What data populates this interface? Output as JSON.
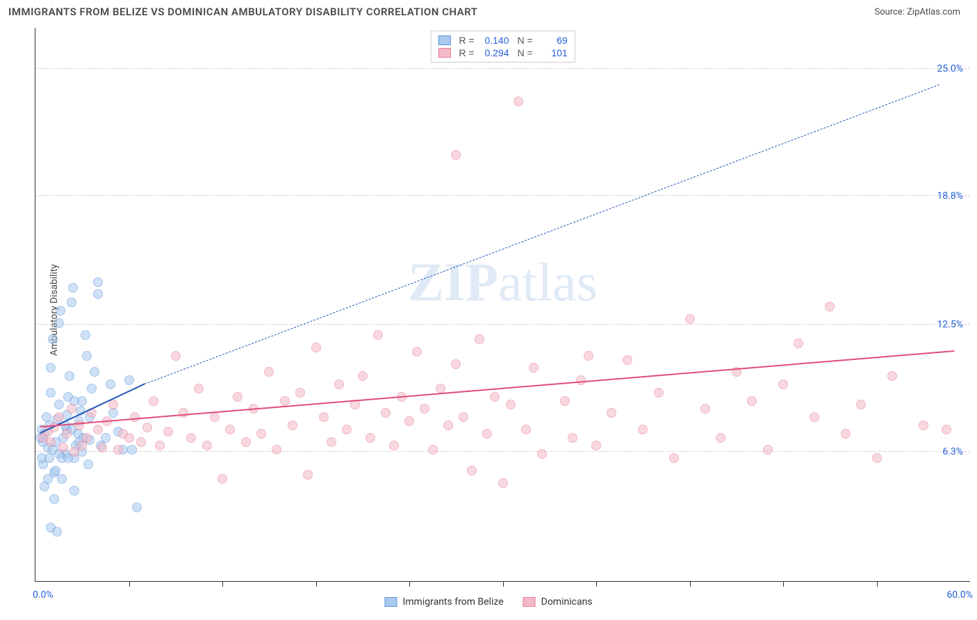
{
  "header": {
    "title": "IMMIGRANTS FROM BELIZE VS DOMINICAN AMBULATORY DISABILITY CORRELATION CHART",
    "source": "Source: ZipAtlas.com"
  },
  "watermark": {
    "part1": "ZIP",
    "part2": "atlas"
  },
  "chart": {
    "type": "scatter",
    "background_color": "#ffffff",
    "grid_color": "#d0d0d0",
    "axis_color": "#333333",
    "tick_label_color": "#2560d8",
    "ylabel": "Ambulatory Disability",
    "xlim": [
      0.0,
      60.0
    ],
    "ylim": [
      0.0,
      27.0
    ],
    "yticks": [
      6.3,
      12.5,
      18.8,
      25.0
    ],
    "ytick_labels": [
      "6.3%",
      "12.5%",
      "18.8%",
      "25.0%"
    ],
    "xlim_labels": {
      "min": "0.0%",
      "max": "60.0%"
    },
    "xticks": [
      6,
      12,
      18,
      24,
      30,
      36,
      42,
      48,
      54
    ],
    "marker_radius": 7,
    "marker_stroke_width": 1.5,
    "series": [
      {
        "id": "belize",
        "label": "Immigrants from Belize",
        "fill": "#a9c9ef",
        "stroke": "#5a96d9",
        "fill_opacity": 0.55,
        "R": "0.140",
        "N": "69",
        "trend": {
          "x1": 0.3,
          "y1": 7.2,
          "x2": 7.0,
          "y2": 9.6,
          "solid_color": "#1f56b8",
          "solid_width": 2,
          "dashed_extend": true,
          "x2_dash": 58.0,
          "y2_dash": 24.2,
          "dashed_color": "#1f56b8"
        },
        "points": [
          [
            0.3,
            7.0
          ],
          [
            0.4,
            7.4
          ],
          [
            0.5,
            6.8
          ],
          [
            0.6,
            7.2
          ],
          [
            0.7,
            8.0
          ],
          [
            0.8,
            6.5
          ],
          [
            0.9,
            7.6
          ],
          [
            1.0,
            9.2
          ],
          [
            1.0,
            10.4
          ],
          [
            1.1,
            11.8
          ],
          [
            1.2,
            5.3
          ],
          [
            1.3,
            6.8
          ],
          [
            1.4,
            7.9
          ],
          [
            1.5,
            8.6
          ],
          [
            1.5,
            12.6
          ],
          [
            1.6,
            13.2
          ],
          [
            1.7,
            5.0
          ],
          [
            1.8,
            7.0
          ],
          [
            1.9,
            6.2
          ],
          [
            2.0,
            7.4
          ],
          [
            2.0,
            8.1
          ],
          [
            2.1,
            9.0
          ],
          [
            2.2,
            10.0
          ],
          [
            2.3,
            13.6
          ],
          [
            2.4,
            14.3
          ],
          [
            2.5,
            4.4
          ],
          [
            2.5,
            6.0
          ],
          [
            2.6,
            6.6
          ],
          [
            2.7,
            7.2
          ],
          [
            2.8,
            7.8
          ],
          [
            2.9,
            8.3
          ],
          [
            3.0,
            8.8
          ],
          [
            3.0,
            6.3
          ],
          [
            3.1,
            7.0
          ],
          [
            3.2,
            12.0
          ],
          [
            3.3,
            11.0
          ],
          [
            3.4,
            5.7
          ],
          [
            3.5,
            6.9
          ],
          [
            3.6,
            9.4
          ],
          [
            3.8,
            10.2
          ],
          [
            4.0,
            14.0
          ],
          [
            4.0,
            14.6
          ],
          [
            4.2,
            6.6
          ],
          [
            4.5,
            7.0
          ],
          [
            4.8,
            9.6
          ],
          [
            5.0,
            8.2
          ],
          [
            5.3,
            7.3
          ],
          [
            5.6,
            6.4
          ],
          [
            6.0,
            9.8
          ],
          [
            6.2,
            6.4
          ],
          [
            6.5,
            3.6
          ],
          [
            1.0,
            2.6
          ],
          [
            1.4,
            2.4
          ],
          [
            1.2,
            4.0
          ],
          [
            0.8,
            5.0
          ],
          [
            0.6,
            4.6
          ],
          [
            0.5,
            5.7
          ],
          [
            0.4,
            6.0
          ],
          [
            0.9,
            6.0
          ],
          [
            1.1,
            6.4
          ],
          [
            1.3,
            5.4
          ],
          [
            1.5,
            6.2
          ],
          [
            1.7,
            6.0
          ],
          [
            1.9,
            7.6
          ],
          [
            2.1,
            6.0
          ],
          [
            2.3,
            7.4
          ],
          [
            2.5,
            8.8
          ],
          [
            2.8,
            6.8
          ],
          [
            3.5,
            8.0
          ]
        ]
      },
      {
        "id": "dominicans",
        "label": "Dominicans",
        "fill": "#f4b9c6",
        "stroke": "#e67a97",
        "fill_opacity": 0.55,
        "R": "0.294",
        "N": "101",
        "trend": {
          "x1": 0.3,
          "y1": 7.5,
          "x2": 59.0,
          "y2": 11.2,
          "solid_color": "#e14c77",
          "solid_width": 2,
          "dashed_extend": false
        },
        "points": [
          [
            0.5,
            7.0
          ],
          [
            0.8,
            7.3
          ],
          [
            1.0,
            6.8
          ],
          [
            1.2,
            7.5
          ],
          [
            1.5,
            8.0
          ],
          [
            1.8,
            6.5
          ],
          [
            2.0,
            7.2
          ],
          [
            2.3,
            8.4
          ],
          [
            2.5,
            6.3
          ],
          [
            2.8,
            7.6
          ],
          [
            3.0,
            6.6
          ],
          [
            3.3,
            7.0
          ],
          [
            3.6,
            8.2
          ],
          [
            4.0,
            7.4
          ],
          [
            4.3,
            6.5
          ],
          [
            4.6,
            7.8
          ],
          [
            5.0,
            8.6
          ],
          [
            5.3,
            6.4
          ],
          [
            5.6,
            7.2
          ],
          [
            6.0,
            7.0
          ],
          [
            6.4,
            8.0
          ],
          [
            6.8,
            6.8
          ],
          [
            7.2,
            7.5
          ],
          [
            7.6,
            8.8
          ],
          [
            8.0,
            6.6
          ],
          [
            8.5,
            7.3
          ],
          [
            9.0,
            11.0
          ],
          [
            9.5,
            8.2
          ],
          [
            10.0,
            7.0
          ],
          [
            10.5,
            9.4
          ],
          [
            11.0,
            6.6
          ],
          [
            11.5,
            8.0
          ],
          [
            12.0,
            5.0
          ],
          [
            12.5,
            7.4
          ],
          [
            13.0,
            9.0
          ],
          [
            13.5,
            6.8
          ],
          [
            14.0,
            8.4
          ],
          [
            14.5,
            7.2
          ],
          [
            15.0,
            10.2
          ],
          [
            15.5,
            6.4
          ],
          [
            16.0,
            8.8
          ],
          [
            16.5,
            7.6
          ],
          [
            17.0,
            9.2
          ],
          [
            17.5,
            5.2
          ],
          [
            18.0,
            11.4
          ],
          [
            18.5,
            8.0
          ],
          [
            19.0,
            6.8
          ],
          [
            19.5,
            9.6
          ],
          [
            20.0,
            7.4
          ],
          [
            20.5,
            8.6
          ],
          [
            21.0,
            10.0
          ],
          [
            21.5,
            7.0
          ],
          [
            22.0,
            12.0
          ],
          [
            22.5,
            8.2
          ],
          [
            23.0,
            6.6
          ],
          [
            23.5,
            9.0
          ],
          [
            24.0,
            7.8
          ],
          [
            24.5,
            11.2
          ],
          [
            25.0,
            8.4
          ],
          [
            25.5,
            6.4
          ],
          [
            26.0,
            9.4
          ],
          [
            26.5,
            7.6
          ],
          [
            27.0,
            10.6
          ],
          [
            27.5,
            8.0
          ],
          [
            28.0,
            5.4
          ],
          [
            28.5,
            11.8
          ],
          [
            29.0,
            7.2
          ],
          [
            29.5,
            9.0
          ],
          [
            30.0,
            4.8
          ],
          [
            30.5,
            8.6
          ],
          [
            31.0,
            23.4
          ],
          [
            31.5,
            7.4
          ],
          [
            32.0,
            10.4
          ],
          [
            32.5,
            6.2
          ],
          [
            27.0,
            20.8
          ],
          [
            34.0,
            8.8
          ],
          [
            34.5,
            7.0
          ],
          [
            35.0,
            9.8
          ],
          [
            35.5,
            11.0
          ],
          [
            36.0,
            6.6
          ],
          [
            37.0,
            8.2
          ],
          [
            38.0,
            10.8
          ],
          [
            39.0,
            7.4
          ],
          [
            40.0,
            9.2
          ],
          [
            41.0,
            6.0
          ],
          [
            42.0,
            12.8
          ],
          [
            43.0,
            8.4
          ],
          [
            44.0,
            7.0
          ],
          [
            45.0,
            10.2
          ],
          [
            46.0,
            8.8
          ],
          [
            47.0,
            6.4
          ],
          [
            48.0,
            9.6
          ],
          [
            49.0,
            11.6
          ],
          [
            50.0,
            8.0
          ],
          [
            51.0,
            13.4
          ],
          [
            52.0,
            7.2
          ],
          [
            53.0,
            8.6
          ],
          [
            54.0,
            6.0
          ],
          [
            55.0,
            10.0
          ],
          [
            57.0,
            7.6
          ],
          [
            58.5,
            7.4
          ]
        ]
      }
    ]
  },
  "legend": {
    "r_label": "R =",
    "n_label": "N ="
  }
}
